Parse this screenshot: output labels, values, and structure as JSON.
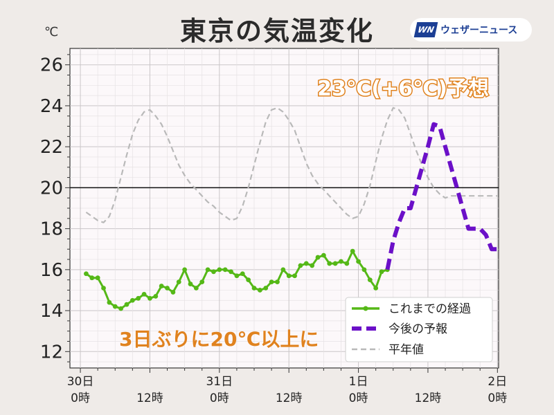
{
  "title": "東京の気温変化",
  "unit": "℃",
  "brand": {
    "logo": "WN",
    "name": "ウェザーニュース"
  },
  "chart_data": {
    "type": "line",
    "ylim": [
      11.2,
      26.8
    ],
    "yticks": [
      12,
      14,
      16,
      18,
      20,
      22,
      24,
      26
    ],
    "xlim_hours": [
      -1.8,
      60.8
    ],
    "xticks": [
      {
        "h": 0,
        "l1": "30日",
        "l2": "0時"
      },
      {
        "h": 12,
        "l1": "",
        "l2": "12時"
      },
      {
        "h": 24,
        "l1": "31日",
        "l2": "0時"
      },
      {
        "h": 36,
        "l1": "",
        "l2": "12時"
      },
      {
        "h": 48,
        "l1": "1日",
        "l2": "0時"
      },
      {
        "h": 60,
        "l1": "",
        "l2": "12時"
      },
      {
        "h": 72,
        "l1": "2日",
        "l2": "0時"
      }
    ],
    "reference_line": 20,
    "grid": true,
    "legend_position": "bottom-right",
    "annotations": [
      "23℃(+6℃)予想",
      "3日ぶりに20℃以上に"
    ],
    "series": [
      {
        "name": "これまでの経過",
        "color": "#55b817",
        "style": "solid-markers",
        "x": [
          1,
          2,
          3,
          4,
          5,
          6,
          7,
          8,
          9,
          10,
          11,
          12,
          13,
          14,
          15,
          16,
          17,
          18,
          19,
          20,
          21,
          22,
          23,
          24,
          25,
          26,
          27,
          28,
          29,
          30,
          31,
          32,
          33,
          34,
          35,
          36,
          37,
          38,
          39,
          40,
          41,
          42,
          43,
          44,
          45,
          46,
          47,
          48,
          49,
          50,
          51,
          52,
          53
        ],
        "y": [
          15.8,
          15.6,
          15.6,
          15.1,
          14.4,
          14.2,
          14.1,
          14.3,
          14.5,
          14.6,
          14.8,
          14.6,
          14.7,
          15.2,
          15.1,
          14.9,
          15.4,
          16.0,
          15.3,
          15.1,
          15.4,
          16.0,
          15.9,
          16.0,
          16.0,
          15.9,
          15.7,
          15.8,
          15.5,
          15.1,
          15.0,
          15.1,
          15.4,
          15.4,
          16.0,
          15.7,
          15.7,
          16.2,
          16.3,
          16.2,
          16.6,
          16.7,
          16.3,
          16.3,
          16.4,
          16.3,
          16.9,
          16.4,
          16.0,
          15.5,
          15.1,
          15.9,
          16.0
        ]
      },
      {
        "name": "今後の予報",
        "color": "#6b10c8",
        "style": "dashed-bold",
        "x": [
          53,
          54,
          55,
          56,
          57,
          58,
          59,
          60,
          61,
          62,
          63,
          64,
          65,
          66,
          67,
          68,
          69,
          70,
          71,
          72
        ],
        "y": [
          16.0,
          17.4,
          18.3,
          19.0,
          19.0,
          20.0,
          21.0,
          22.0,
          23.1,
          23.0,
          22.0,
          21.0,
          20.0,
          19.0,
          18.0,
          18.0,
          18.0,
          17.7,
          17.0,
          17.0
        ]
      },
      {
        "name": "平年値",
        "color": "#b9b9b9",
        "style": "dashed-thin",
        "x": [
          1,
          3,
          4,
          5,
          6,
          7,
          8,
          9,
          10,
          11,
          12,
          13,
          14,
          15,
          16,
          17,
          18,
          19,
          20,
          21,
          22,
          23,
          24,
          25,
          26,
          27,
          28,
          29,
          30,
          31,
          32,
          33,
          34,
          35,
          36,
          37,
          38,
          39,
          40,
          41,
          42,
          43,
          44,
          45,
          46,
          47,
          48,
          49,
          50,
          51,
          52,
          53,
          54,
          55,
          56,
          57,
          58,
          59,
          60,
          61,
          62,
          63,
          64,
          65,
          66,
          67,
          68,
          69,
          70,
          71,
          72
        ],
        "y": [
          18.8,
          18.4,
          18.3,
          18.6,
          19.4,
          20.5,
          21.6,
          22.6,
          23.3,
          23.7,
          23.8,
          23.5,
          23.1,
          22.5,
          21.8,
          21.1,
          20.6,
          20.2,
          19.9,
          19.6,
          19.3,
          19.1,
          18.8,
          18.6,
          18.4,
          18.5,
          19.1,
          20.0,
          21.1,
          22.2,
          23.2,
          23.8,
          23.9,
          23.7,
          23.3,
          22.8,
          22.0,
          21.2,
          20.6,
          20.2,
          19.9,
          19.6,
          19.3,
          19.0,
          18.7,
          18.5,
          18.6,
          19.2,
          20.1,
          21.3,
          22.4,
          23.3,
          23.9,
          23.8,
          23.4,
          22.6,
          21.8,
          21.1,
          20.5,
          20.0,
          19.7,
          19.5,
          19.6,
          19.6,
          19.6,
          19.6,
          19.6,
          19.6,
          19.6,
          19.6,
          19.6
        ]
      }
    ]
  }
}
